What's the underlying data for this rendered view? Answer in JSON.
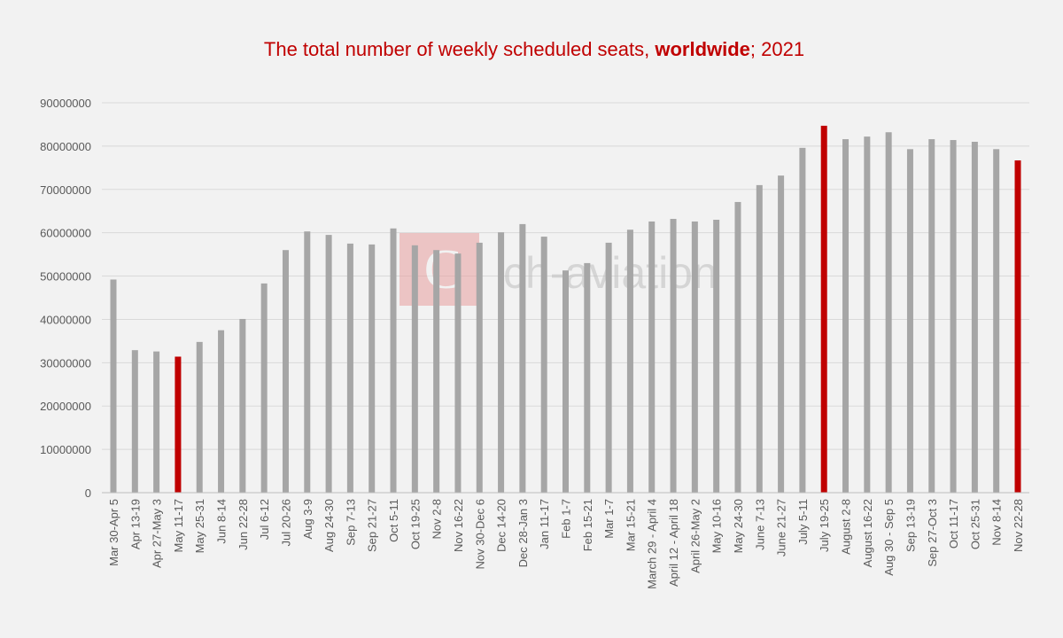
{
  "chart_data": {
    "type": "bar",
    "title_parts": [
      "The total number of weekly scheduled seats, ",
      "worldwide",
      "; 2021"
    ],
    "xlabel": "",
    "ylabel": "",
    "ylim": [
      0,
      90000000
    ],
    "yticks": [
      0,
      10000000,
      20000000,
      30000000,
      40000000,
      50000000,
      60000000,
      70000000,
      80000000,
      90000000
    ],
    "grid": true,
    "categories": [
      "Mar 30-Apr 5",
      "Apr 13-19",
      "Apr 27-May 3",
      "May 11-17",
      "May 25-31",
      "Jun 8-14",
      "Jun 22-28",
      "Jul 6-12",
      "Jul 20-26",
      "Aug 3-9",
      "Aug 24-30",
      "Sep 7-13",
      "Sep 21-27",
      "Oct 5-11",
      "Oct 19-25",
      "Nov 2-8",
      "Nov 16-22",
      "Nov 30-Dec 6",
      "Dec 14-20",
      "Dec 28-Jan 3",
      "Jan 11-17",
      "Feb 1-7",
      "Feb 15-21",
      "Mar 1-7",
      "Mar 15-21",
      "March 29 - April 4",
      "April 12 - April 18",
      "April 26-May 2",
      "May 10-16",
      "May 24-30",
      "June 7-13",
      "June 21-27",
      "July 5-11",
      "July 19-25",
      "August 2-8",
      "August 16-22",
      "Aug 30 - Sep 5",
      "Sep 13-19",
      "Sep 27-Oct 3",
      "Oct 11-17",
      "Oct 25-31",
      "Nov 8-14",
      "Nov 22-28"
    ],
    "values": [
      49200000,
      32900000,
      32600000,
      31400000,
      34800000,
      37500000,
      40100000,
      48300000,
      56000000,
      60300000,
      59500000,
      57500000,
      57300000,
      61000000,
      57100000,
      56000000,
      55200000,
      57700000,
      60100000,
      62000000,
      59100000,
      51300000,
      53000000,
      57700000,
      60700000,
      62600000,
      63200000,
      62600000,
      63000000,
      67100000,
      71000000,
      73200000,
      79600000,
      84700000,
      81600000,
      82200000,
      83200000,
      79300000,
      81600000,
      81400000,
      81000000,
      79300000,
      76700000
    ],
    "highlighted": [
      "May 11-17",
      "July 19-25",
      "Nov 22-28"
    ],
    "colors": {
      "bar": "#a6a6a6",
      "highlight": "#c00000",
      "grid": "#d9d9d9",
      "title": "#c00000"
    }
  },
  "watermark": {
    "text": "ch-aviation",
    "logo_color": "#e8a0a0"
  }
}
